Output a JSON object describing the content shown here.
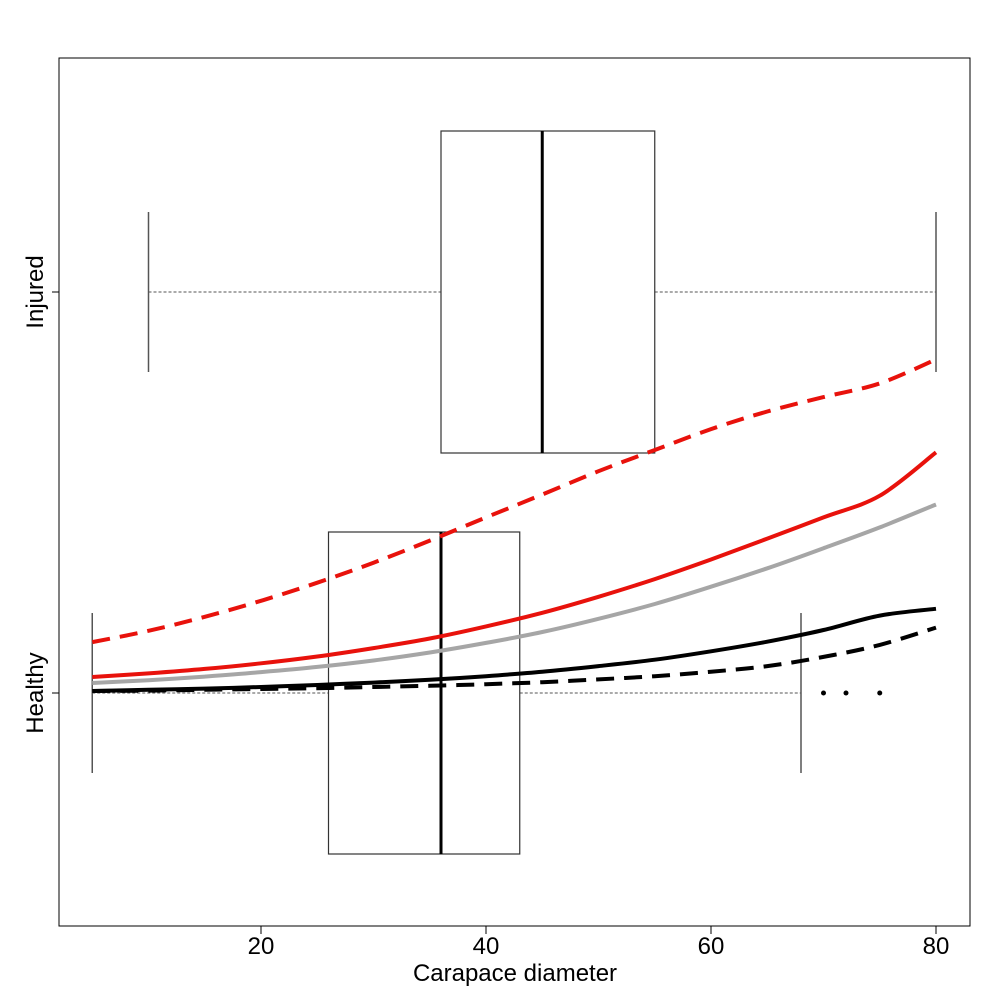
{
  "chart_data": {
    "type": "boxplot-with-curves",
    "title": "",
    "xlabel": "Carapace diameter",
    "ylabel": "",
    "xlim": [
      2.5,
      83
    ],
    "x_ticks": [
      20,
      40,
      60,
      80
    ],
    "x_tick_labels": [
      "20",
      "40",
      "60",
      "80"
    ],
    "y_categories": [
      "Healthy",
      "Injured"
    ],
    "grid": false,
    "legend": "none",
    "boxplots": [
      {
        "name": "Healthy",
        "min": 5,
        "q1": 26,
        "median": 36,
        "q3": 43,
        "max": 68,
        "outliers": [
          70,
          72,
          75
        ]
      },
      {
        "name": "Injured",
        "min": 10,
        "q1": 36,
        "median": 45,
        "q3": 55,
        "max": 80,
        "outliers": []
      }
    ],
    "curves_scale": "probability (0 = Healthy, 1 = Injured)",
    "x": [
      5,
      10,
      15,
      20,
      25,
      30,
      35,
      40,
      45,
      50,
      55,
      60,
      65,
      70,
      75,
      80
    ],
    "series": [
      {
        "style": "dashed",
        "color": "#e8120c",
        "values": [
          0.127,
          0.155,
          0.19,
          0.23,
          0.275,
          0.325,
          0.38,
          0.438,
          0.495,
          0.553,
          0.606,
          0.658,
          0.702,
          0.738,
          0.772,
          0.832
        ]
      },
      {
        "style": "solid",
        "color": "#e8120c",
        "values": [
          0.04,
          0.049,
          0.06,
          0.074,
          0.091,
          0.112,
          0.136,
          0.166,
          0.2,
          0.24,
          0.284,
          0.333,
          0.385,
          0.438,
          0.492,
          0.6
        ]
      },
      {
        "style": "solid",
        "color": "#a6a6a6",
        "values": [
          0.025,
          0.032,
          0.041,
          0.052,
          0.065,
          0.081,
          0.101,
          0.125,
          0.152,
          0.185,
          0.222,
          0.265,
          0.311,
          0.361,
          0.413,
          0.47
        ]
      },
      {
        "style": "solid",
        "color": "#000000",
        "values": [
          0.005,
          0.008,
          0.011,
          0.015,
          0.02,
          0.026,
          0.033,
          0.042,
          0.053,
          0.067,
          0.083,
          0.104,
          0.128,
          0.157,
          0.193,
          0.21
        ]
      },
      {
        "style": "dashed",
        "color": "#000000",
        "values": [
          0.005,
          0.006,
          0.008,
          0.01,
          0.012,
          0.015,
          0.018,
          0.022,
          0.027,
          0.034,
          0.042,
          0.053,
          0.067,
          0.09,
          0.12,
          0.163
        ]
      }
    ]
  }
}
